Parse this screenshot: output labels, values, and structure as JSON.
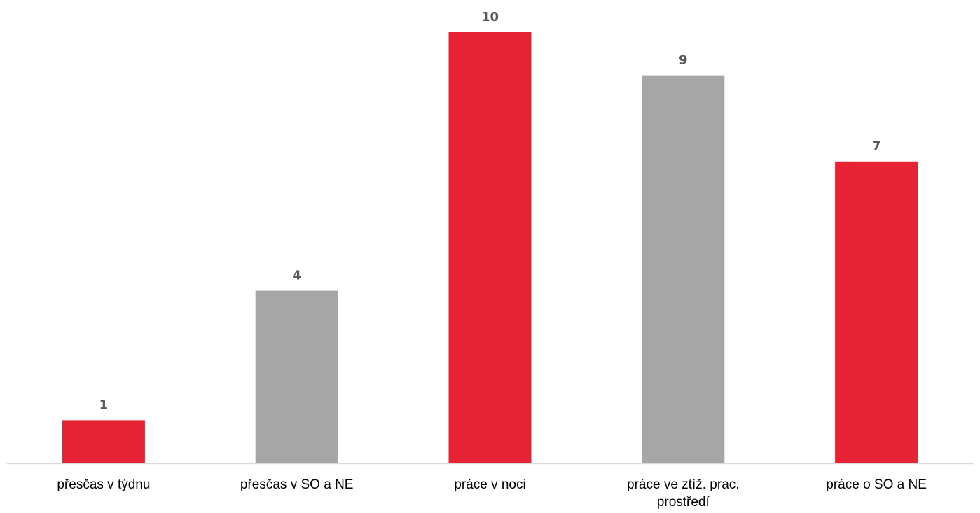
{
  "chart_data": {
    "type": "bar",
    "categories": [
      "přesčas v týdnu",
      "přesčas v SO a NE",
      "práce v noci",
      "práce ve ztíž. prac. prostředí",
      "práce o SO a NE"
    ],
    "category_label_lines": [
      [
        "přesčas v týdnu"
      ],
      [
        "přesčas v SO a NE"
      ],
      [
        "práce v noci"
      ],
      [
        "práce ve ztíž. prac.",
        "prostředí"
      ],
      [
        "práce o SO a NE"
      ]
    ],
    "values": [
      1,
      4,
      10,
      9,
      7
    ],
    "value_labels": [
      "1",
      "4",
      "10",
      "9",
      "7"
    ],
    "bar_colors": [
      "#e52335",
      "#a6a6a6",
      "#e52335",
      "#a6a6a6",
      "#e52335"
    ],
    "title": "",
    "xlabel": "",
    "ylabel": "",
    "ylim": [
      0,
      10
    ],
    "grid": false,
    "legend": "none",
    "axis_color": "#d9d9d9"
  }
}
